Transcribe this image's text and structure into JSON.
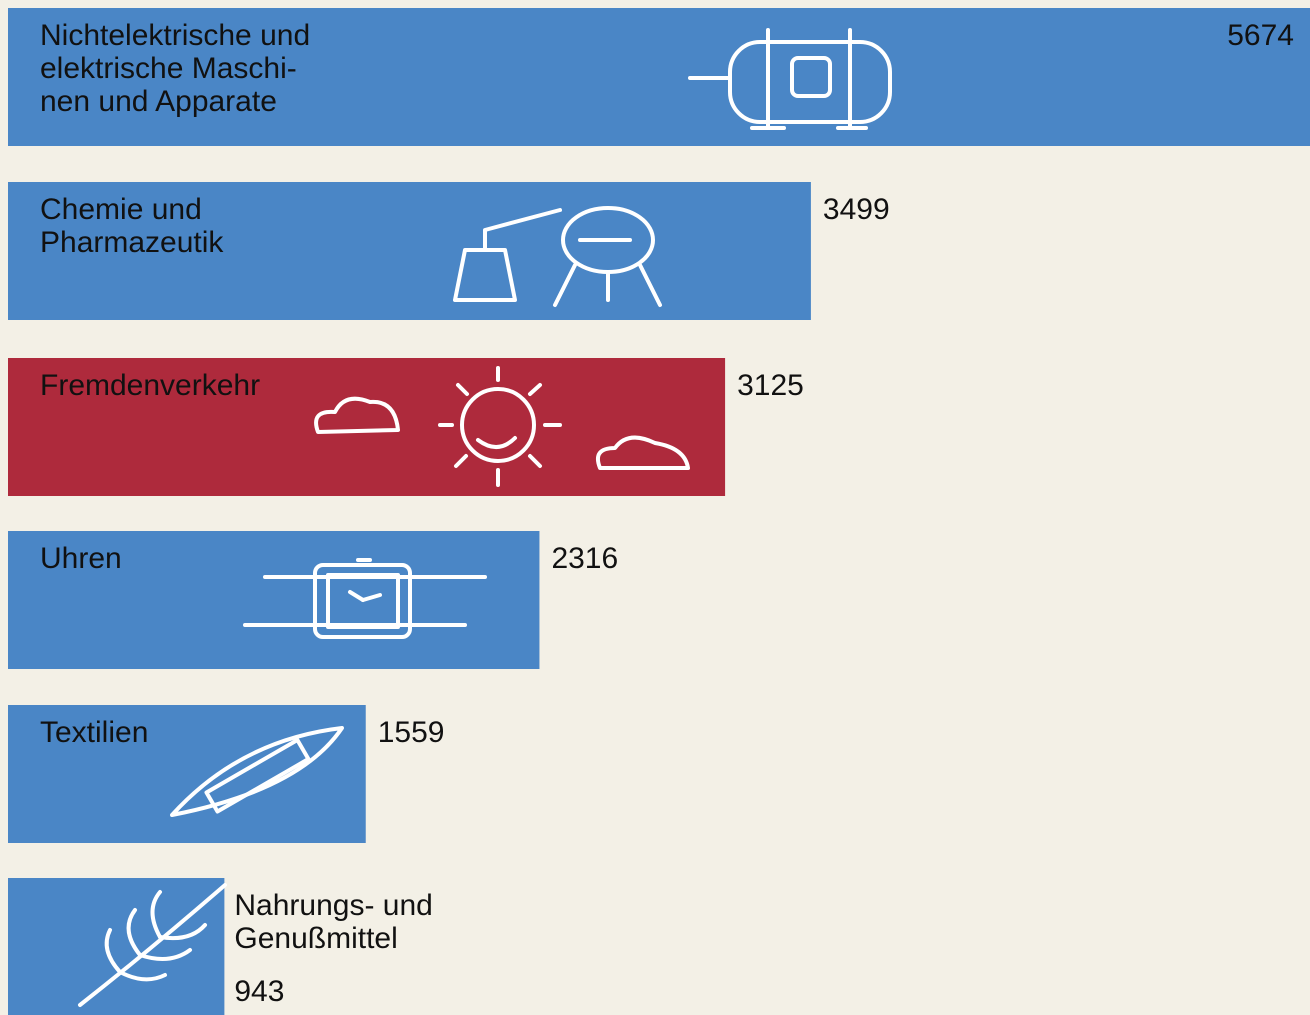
{
  "chart_data": {
    "type": "bar",
    "categories": [
      [
        "Nichtelektrische und",
        "elektrische Maschi-",
        "nen und Apparate"
      ],
      [
        "Chemie und",
        "Pharmazeutik"
      ],
      [
        "Fremdenverkehr"
      ],
      [
        "Uhren"
      ],
      [
        "Textilien"
      ],
      [
        "Nahrungs- und",
        "Genußmittel"
      ]
    ],
    "values": [
      5674,
      3499,
      3125,
      2316,
      1559,
      943
    ],
    "colors": [
      "#4a86c6",
      "#4a86c6",
      "#ae2a3c",
      "#4a86c6",
      "#4a86c6",
      "#4a86c6"
    ]
  }
}
